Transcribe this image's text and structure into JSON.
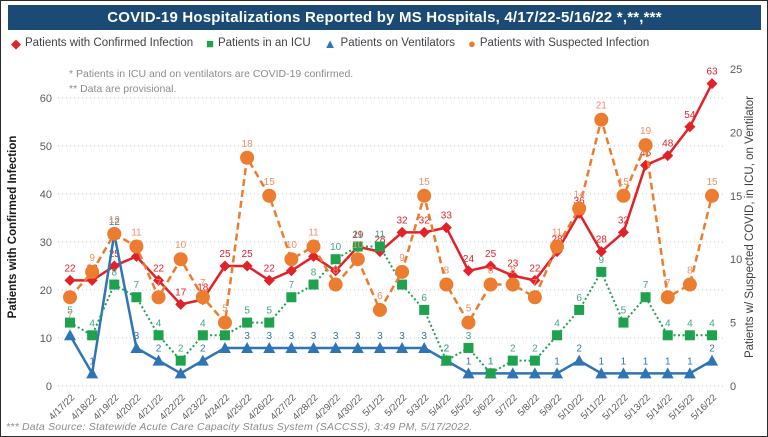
{
  "title": "COVID-19 Hospitalizations Reported by MS Hospitals, 4/17/22-5/16/22 *,**,***",
  "title_bar_color": "#1b4a74",
  "notes": [
    "* Patients in ICU and on ventilators are COVID-19 confirmed.",
    "** Data are provisional."
  ],
  "footer": "*** Data Source: Statewide Acute Care Capacity Status System (SACCSS), 3:49 PM, 5/17/2022.",
  "legend": [
    {
      "label": "Patients with Confirmed Infection",
      "marker": "diamond-icon",
      "glyph": "◆",
      "color": "#e22128"
    },
    {
      "label": "Patients in an ICU",
      "marker": "square-icon",
      "glyph": "■",
      "color": "#1fa24e"
    },
    {
      "label": "Patients on Ventilators",
      "marker": "triangle-icon",
      "glyph": "▲",
      "color": "#2f74b5"
    },
    {
      "label": "Patients with Suspected Infection",
      "marker": "circle-icon",
      "glyph": "●",
      "color": "#ec7c30"
    }
  ],
  "chart_data": {
    "type": "line",
    "grid": true,
    "categories": [
      "4/17/22",
      "4/18/22",
      "4/19/22",
      "4/20/22",
      "4/21/22",
      "4/22/22",
      "4/23/22",
      "4/24/22",
      "4/25/22",
      "4/26/22",
      "4/27/22",
      "4/28/22",
      "4/29/22",
      "4/30/22",
      "5/1/22",
      "5/2/22",
      "5/3/22",
      "5/4/22",
      "5/5/22",
      "5/6/22",
      "5/7/22",
      "5/8/22",
      "5/9/22",
      "5/10/22",
      "5/11/22",
      "5/12/22",
      "5/13/22",
      "5/14/22",
      "5/15/22",
      "5/16/22"
    ],
    "left_axis": {
      "title": "Patients with Confirmed Infection",
      "ticks": [
        0,
        10,
        20,
        30,
        40,
        50,
        60
      ],
      "range": [
        0,
        60
      ]
    },
    "right_axis": {
      "title": "Patients w/ Suspected COVID, in ICU, on Ventilator",
      "ticks": [
        0,
        5,
        10,
        15,
        20,
        25
      ],
      "range": [
        0,
        25
      ]
    },
    "series": [
      {
        "name": "Patients with Confirmed Infection",
        "axis": "left",
        "marker": "diamond",
        "line": "solid",
        "color": "#e22128",
        "label_color": "#e22128",
        "values": [
          22,
          22,
          25,
          27,
          22,
          17,
          18,
          25,
          25,
          22,
          24,
          27,
          24,
          29,
          28,
          32,
          32,
          33,
          24,
          25,
          23,
          22,
          28,
          36,
          28,
          32,
          46,
          48,
          54,
          63
        ]
      },
      {
        "name": "Patients in an ICU",
        "axis": "right",
        "marker": "square",
        "line": "dotted",
        "color": "#1fa24e",
        "label_color": "#45a384",
        "values": [
          5,
          4,
          8,
          7,
          4,
          2,
          4,
          4,
          5,
          5,
          7,
          8,
          10,
          11,
          11,
          8,
          6,
          2,
          3,
          1,
          2,
          2,
          4,
          6,
          9,
          5,
          7,
          4,
          4,
          4
        ]
      },
      {
        "name": "Patients on Ventilators",
        "axis": "right",
        "marker": "triangle",
        "line": "solid",
        "color": "#2f74b5",
        "label_color": "#2f74b5",
        "values": [
          4,
          1,
          12,
          3,
          2,
          1,
          2,
          3,
          3,
          3,
          3,
          3,
          3,
          3,
          3,
          3,
          3,
          2,
          1,
          1,
          1,
          1,
          1,
          2,
          1,
          1,
          1,
          1,
          1,
          2
        ]
      },
      {
        "name": "Patients with Suspected Infection",
        "axis": "right",
        "marker": "circle",
        "line": "dashed",
        "color": "#ec7c30",
        "label_color": "#ef8f66",
        "values": [
          7,
          9,
          12,
          11,
          7,
          10,
          7,
          5,
          18,
          15,
          10,
          11,
          8,
          10,
          6,
          9,
          15,
          8,
          5,
          8,
          8,
          7,
          11,
          14,
          21,
          15,
          19,
          7,
          8,
          15
        ]
      }
    ]
  }
}
